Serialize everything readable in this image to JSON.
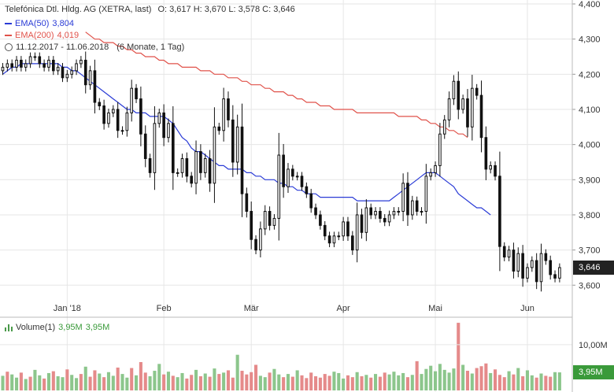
{
  "header": {
    "title": "Telefónica Dtl. Hldg. AG (XETRA, last)",
    "ohlc": "O: 3,617  H: 3,670  L: 3,578  C: 3,646",
    "ema50_label": "EMA(50)",
    "ema50_value": "3,804",
    "ema200_label": "EMA(200)",
    "ema200_value": "4,019",
    "range": "11.12.2017 - 11.06.2018",
    "range_note": "(6 Monate, 1 Tag)"
  },
  "volume_legend": {
    "label": "Volume(1)",
    "value1": "3,95M",
    "value2": "3,95M"
  },
  "tags": {
    "last_price": "3,646",
    "last_volume": "3,95M"
  },
  "colors": {
    "ema50": "#2a3bd6",
    "ema200": "#e0524a",
    "candle": "#111111",
    "volume_up": "#8cc68c",
    "volume_down": "#e58a8a",
    "grid": "#e6e6e6"
  },
  "chart_data": [
    {
      "type": "candlestick",
      "y_ticks": [
        "4,400",
        "4,300",
        "4,200",
        "4,100",
        "4,000",
        "3,900",
        "3,800",
        "3,700",
        "3,600"
      ],
      "y_tick_values": [
        4.4,
        4.3,
        4.2,
        4.1,
        4.0,
        3.9,
        3.8,
        3.7,
        3.6
      ],
      "ylim": [
        3.52,
        4.4
      ],
      "x_tick_labels": [
        "Jan '18",
        "Feb",
        "Mär",
        "Apr",
        "Mai",
        "Jun"
      ],
      "x_tick_index": [
        14,
        35,
        54,
        74,
        94,
        114
      ],
      "close": [
        4.22,
        4.23,
        4.22,
        4.24,
        4.22,
        4.23,
        4.25,
        4.25,
        4.23,
        4.22,
        4.24,
        4.21,
        4.22,
        4.19,
        4.2,
        4.21,
        4.23,
        4.24,
        4.17,
        4.21,
        4.12,
        4.11,
        4.06,
        4.09,
        4.1,
        4.04,
        4.04,
        4.09,
        4.16,
        4.13,
        4.03,
        3.96,
        3.92,
        4.06,
        4.09,
        4.02,
        4.06,
        3.92,
        3.92,
        3.96,
        3.91,
        3.89,
        3.98,
        3.92,
        3.96,
        3.89,
        4.05,
        4.04,
        4.13,
        4.07,
        3.95,
        4.05,
        3.86,
        3.81,
        3.73,
        3.7,
        3.76,
        3.81,
        3.77,
        3.79,
        3.97,
        3.88,
        3.93,
        3.91,
        3.91,
        3.88,
        3.86,
        3.82,
        3.8,
        3.77,
        3.74,
        3.72,
        3.74,
        3.74,
        3.78,
        3.74,
        3.7,
        3.8,
        3.75,
        3.82,
        3.8,
        3.81,
        3.79,
        3.78,
        3.8,
        3.81,
        3.81,
        3.89,
        3.8,
        3.84,
        3.81,
        3.81,
        3.91,
        3.92,
        3.94,
        4.03,
        4.07,
        4.13,
        4.18,
        4.1,
        4.13,
        4.05,
        4.16,
        4.14,
        4.02,
        3.93,
        3.94,
        3.91,
        3.71,
        3.68,
        3.7,
        3.64,
        3.69,
        3.62,
        3.65,
        3.67,
        3.61,
        3.69,
        3.67,
        3.63,
        3.62,
        3.65
      ],
      "ema50": [
        4.2,
        4.21,
        4.22,
        4.22,
        4.23,
        4.23,
        4.23,
        4.23,
        4.23,
        4.23,
        4.23,
        4.23,
        4.23,
        4.22,
        4.22,
        4.21,
        4.21,
        4.2,
        4.19,
        4.18,
        4.17,
        4.16,
        4.15,
        4.14,
        4.13,
        4.12,
        4.11,
        4.1,
        4.1,
        4.09,
        4.09,
        4.09,
        4.08,
        4.08,
        4.08,
        4.08,
        4.07,
        4.06,
        4.04,
        4.02,
        4.01,
        3.99,
        3.98,
        3.98,
        3.97,
        3.96,
        3.95,
        3.94,
        3.94,
        3.93,
        3.93,
        3.93,
        3.93,
        3.92,
        3.92,
        3.91,
        3.91,
        3.9,
        3.9,
        3.9,
        3.89,
        3.89,
        3.88,
        3.88,
        3.87,
        3.87,
        3.86,
        3.86,
        3.86,
        3.85,
        3.85,
        3.85,
        3.85,
        3.85,
        3.85,
        3.85,
        3.85,
        3.84,
        3.84,
        3.84,
        3.84,
        3.84,
        3.84,
        3.84,
        3.84,
        3.85,
        3.86,
        3.87,
        3.88,
        3.89,
        3.9,
        3.91,
        3.92,
        3.92,
        3.92,
        3.91,
        3.9,
        3.89,
        3.88,
        3.86,
        3.85,
        3.84,
        3.83,
        3.82,
        3.82,
        3.81,
        3.8
      ],
      "ema50_x_start": 0,
      "ema200": [
        4.32,
        4.31,
        4.3,
        4.3,
        4.29,
        4.29,
        4.29,
        4.28,
        4.28,
        4.27,
        4.27,
        4.26,
        4.26,
        4.25,
        4.25,
        4.25,
        4.24,
        4.24,
        4.23,
        4.23,
        4.23,
        4.22,
        4.22,
        4.22,
        4.22,
        4.21,
        4.21,
        4.21,
        4.2,
        4.2,
        4.2,
        4.19,
        4.19,
        4.19,
        4.18,
        4.18,
        4.17,
        4.17,
        4.17,
        4.16,
        4.16,
        4.15,
        4.15,
        4.15,
        4.14,
        4.14,
        4.13,
        4.13,
        4.12,
        4.12,
        4.12,
        4.11,
        4.11,
        4.11,
        4.1,
        4.1,
        4.1,
        4.1,
        4.1,
        4.09,
        4.09,
        4.09,
        4.09,
        4.09,
        4.09,
        4.09,
        4.09,
        4.09,
        4.08,
        4.08,
        4.08,
        4.08,
        4.08,
        4.07,
        4.07,
        4.06,
        4.06,
        4.05,
        4.05,
        4.04,
        4.04,
        4.03,
        4.03,
        4.02
      ],
      "ema200_x_start": 18
    },
    {
      "type": "bar",
      "y_ticks": [
        "10,00M"
      ],
      "y_tick_values": [
        10.0
      ],
      "ylim": [
        0,
        15.5
      ],
      "volume": [
        3.2,
        4.1,
        3.5,
        2.8,
        3.9,
        2.5,
        3.0,
        4.5,
        3.3,
        2.6,
        3.8,
        4.2,
        3.1,
        2.9,
        4.6,
        3.4,
        2.7,
        3.6,
        5.2,
        3.0,
        4.4,
        3.7,
        2.9,
        4.0,
        3.2,
        5.0,
        3.6,
        2.8,
        4.9,
        3.3,
        6.2,
        3.9,
        3.1,
        4.3,
        5.8,
        3.5,
        4.1,
        3.2,
        2.9,
        3.8,
        2.6,
        3.4,
        4.5,
        3.1,
        3.7,
        3.0,
        4.8,
        3.6,
        3.9,
        4.4,
        2.8,
        7.8,
        4.3,
        3.5,
        4.0,
        5.6,
        3.2,
        2.9,
        3.9,
        4.7,
        3.5,
        2.9,
        3.6,
        3.0,
        4.4,
        3.3,
        2.7,
        3.9,
        3.1,
        2.8,
        3.6,
        3.2,
        4.1,
        3.8,
        2.6,
        3.3,
        2.9,
        4.0,
        3.1,
        3.4,
        2.8,
        3.6,
        3.0,
        3.9,
        3.5,
        4.1,
        3.3,
        3.8,
        2.9,
        3.4,
        6.4,
        3.6,
        4.7,
        5.4,
        4.2,
        5.8,
        4.5,
        3.9,
        4.8,
        14.8,
        5.6,
        4.3,
        3.7,
        4.9,
        5.3,
        5.9,
        3.8,
        4.6,
        3.4,
        2.9,
        4.2,
        3.5,
        4.9,
        3.1,
        4.4,
        3.3,
        2.8,
        3.7,
        3.2,
        3.0,
        4.0,
        3.95
      ],
      "volume_up": [
        true,
        false,
        true,
        true,
        false,
        true,
        false,
        true,
        true,
        false,
        true,
        false,
        true,
        true,
        false,
        true,
        true,
        false,
        true,
        false,
        false,
        true,
        false,
        true,
        true,
        false,
        true,
        true,
        false,
        true,
        false,
        false,
        true,
        true,
        true,
        false,
        true,
        false,
        true,
        true,
        false,
        false,
        true,
        false,
        true,
        false,
        true,
        false,
        true,
        false,
        false,
        true,
        false,
        false,
        false,
        false,
        true,
        true,
        false,
        true,
        true,
        false,
        true,
        false,
        true,
        false,
        false,
        false,
        false,
        false,
        false,
        false,
        true,
        true,
        true,
        false,
        false,
        true,
        false,
        true,
        false,
        true,
        false,
        false,
        true,
        true,
        true,
        true,
        false,
        true,
        false,
        true,
        true,
        true,
        true,
        true,
        true,
        true,
        true,
        false,
        true,
        false,
        true,
        false,
        false,
        false,
        true,
        false,
        false,
        false,
        true,
        false,
        true,
        false,
        true,
        true,
        false,
        true,
        false,
        false,
        true,
        true
      ]
    }
  ]
}
